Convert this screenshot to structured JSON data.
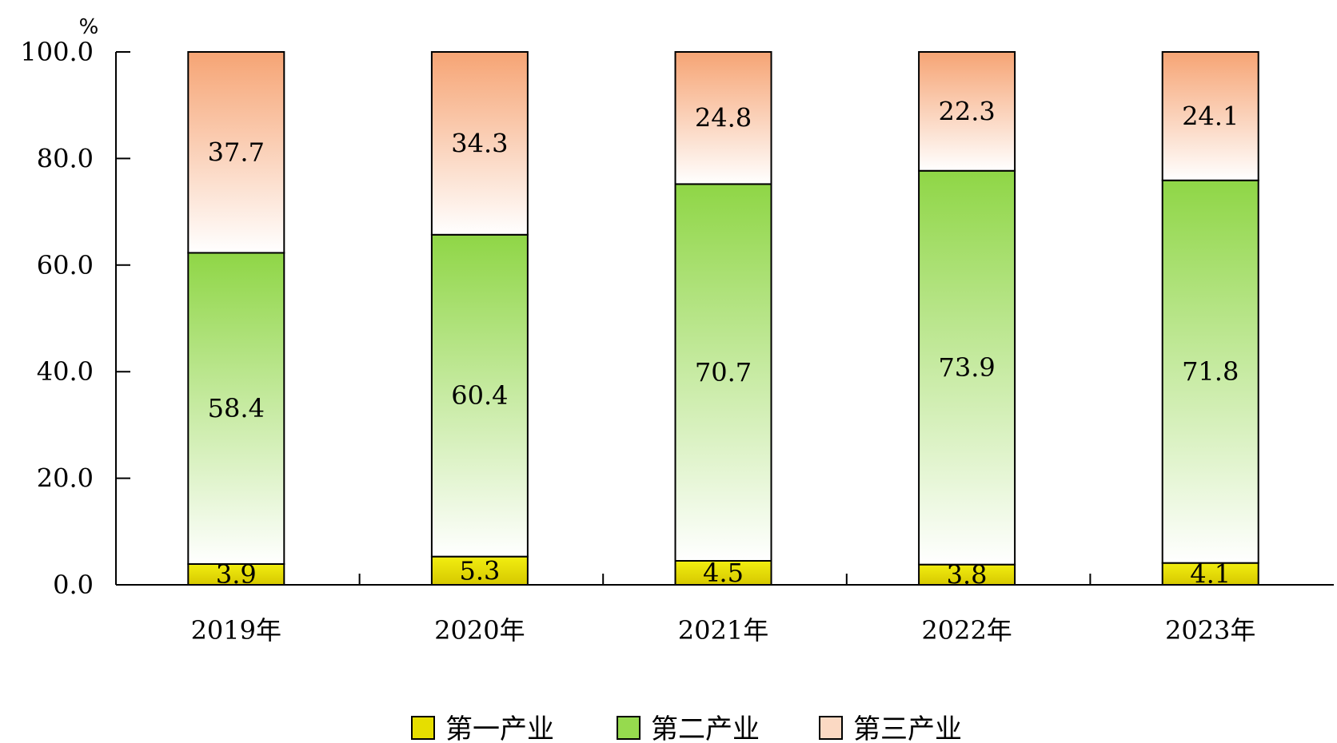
{
  "chart_data": {
    "type": "bar",
    "stacked": true,
    "title": "",
    "xlabel": "",
    "ylabel": "",
    "unit_label": "%",
    "ylim": [
      0,
      100
    ],
    "yticks": [
      "0.0",
      "20.0",
      "40.0",
      "60.0",
      "80.0",
      "100.0"
    ],
    "categories": [
      "2019年",
      "2020年",
      "2021年",
      "2022年",
      "2023年"
    ],
    "series": [
      {
        "name": "第一产业",
        "values": [
          3.9,
          5.3,
          4.5,
          3.8,
          4.1
        ],
        "labels": [
          "3.9",
          "5.3",
          "4.5",
          "3.8",
          "4.1"
        ],
        "color": "#e8e000"
      },
      {
        "name": "第二产业",
        "values": [
          58.4,
          60.4,
          70.7,
          73.9,
          71.8
        ],
        "labels": [
          "58.4",
          "60.4",
          "70.7",
          "73.9",
          "71.8"
        ],
        "color": "#92d84a"
      },
      {
        "name": "第三产业",
        "values": [
          37.7,
          34.3,
          24.8,
          22.3,
          24.1
        ],
        "labels": [
          "37.7",
          "34.3",
          "24.8",
          "22.3",
          "24.1"
        ],
        "color": "#f6a87a"
      }
    ],
    "legend_position": "bottom",
    "grid": false
  }
}
